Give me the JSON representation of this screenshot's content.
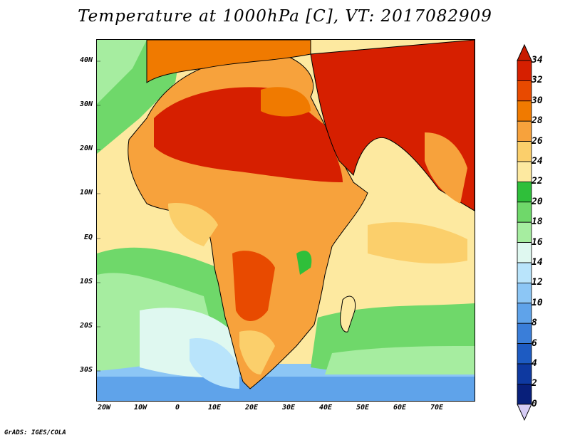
{
  "map": {
    "title": "Temperature at 1000hPa [C], VT: 2017082909",
    "variable": "Temperature",
    "level": "1000hPa",
    "units": "C",
    "valid_time": "2017082909",
    "lat_labels": [
      "40N",
      "30N",
      "20N",
      "10N",
      "EQ",
      "10S",
      "20S",
      "30S"
    ],
    "lon_labels": [
      "20W",
      "10W",
      "0",
      "10E",
      "20E",
      "30E",
      "40E",
      "50E",
      "60E",
      "70E"
    ],
    "credit": "GrADS: IGES/COLA"
  },
  "colorbar": {
    "levels": [
      "34",
      "32",
      "30",
      "28",
      "26",
      "24",
      "22",
      "20",
      "18",
      "16",
      "14",
      "12",
      "10",
      "8",
      "6",
      "4",
      "2",
      "0"
    ],
    "colors": [
      "#d61f00",
      "#e84a00",
      "#f07a00",
      "#f7a23c",
      "#fbcf6b",
      "#fde9a0",
      "#2fbf3a",
      "#6fd86a",
      "#a6eda0",
      "#dff8f0",
      "#b9e4fb",
      "#8cc6f5",
      "#5fa3ea",
      "#3a7ed9",
      "#1d5bc2",
      "#0e39a0",
      "#081f7a"
    ],
    "over_color": "#c81a00",
    "under_color": "#d6ccf5"
  },
  "colors": {
    "hot": "#d61f00",
    "warm": "#f07a00",
    "mild": "#fbcf6b",
    "green": "#2fbf3a",
    "cool": "#b9e4fb",
    "cold": "#5fa3ea"
  }
}
